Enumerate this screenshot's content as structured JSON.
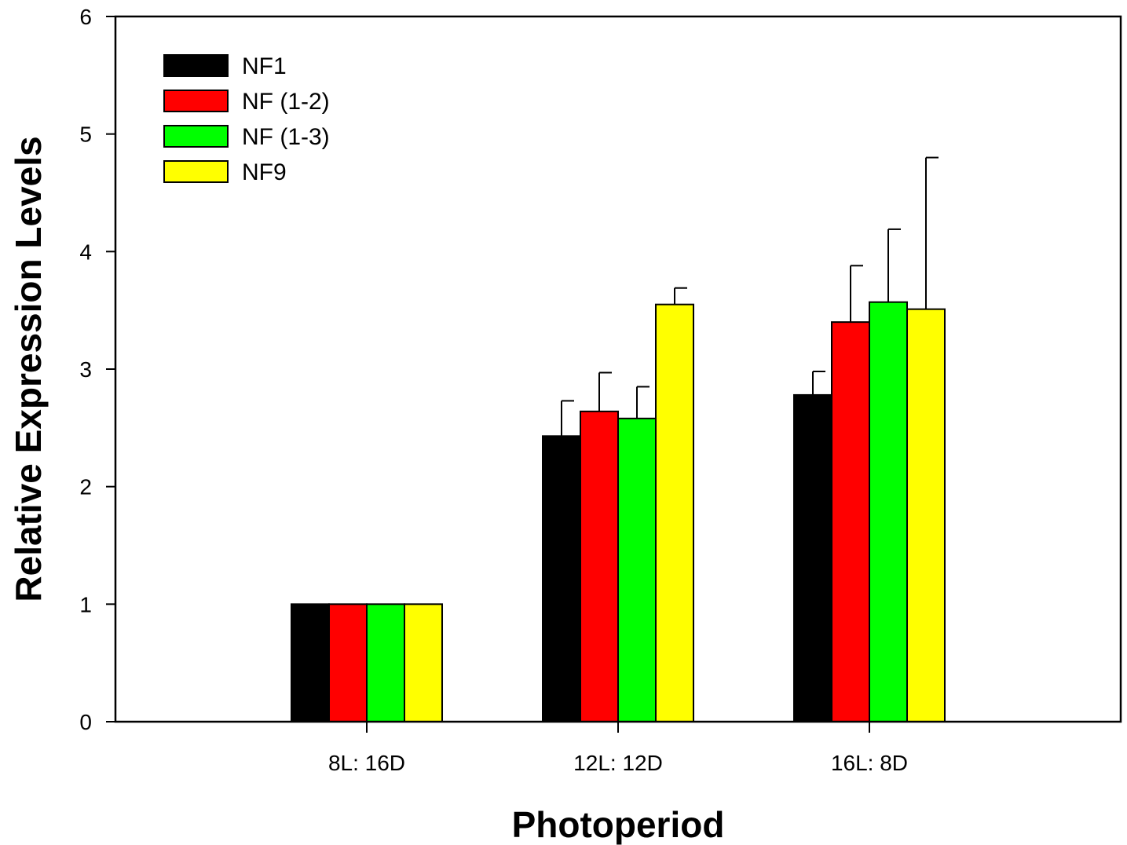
{
  "chart_data": {
    "type": "bar",
    "title": "",
    "xlabel": "Photoperiod",
    "ylabel": "Relative Expression Levels",
    "ylim": [
      0,
      6
    ],
    "yticks": [
      0,
      1,
      2,
      3,
      4,
      5,
      6
    ],
    "grid": false,
    "legend_position": "top-left",
    "categories": [
      "8L: 16D",
      "12L: 12D",
      "16L: 8D"
    ],
    "series": [
      {
        "name": "NF1",
        "color": "#000000",
        "values": [
          1.0,
          2.43,
          2.78
        ],
        "errors": [
          0,
          0.3,
          0.2
        ]
      },
      {
        "name": "NF (1-2)",
        "color": "#ff0000",
        "values": [
          1.0,
          2.64,
          3.4
        ],
        "errors": [
          0,
          0.33,
          0.48
        ]
      },
      {
        "name": "NF (1-3)",
        "color": "#00ff00",
        "values": [
          1.0,
          2.58,
          3.57
        ],
        "errors": [
          0,
          0.27,
          0.62
        ]
      },
      {
        "name": "NF9",
        "color": "#ffff00",
        "values": [
          1.0,
          3.55,
          3.51
        ],
        "errors": [
          0,
          0.14,
          1.29
        ]
      }
    ]
  }
}
